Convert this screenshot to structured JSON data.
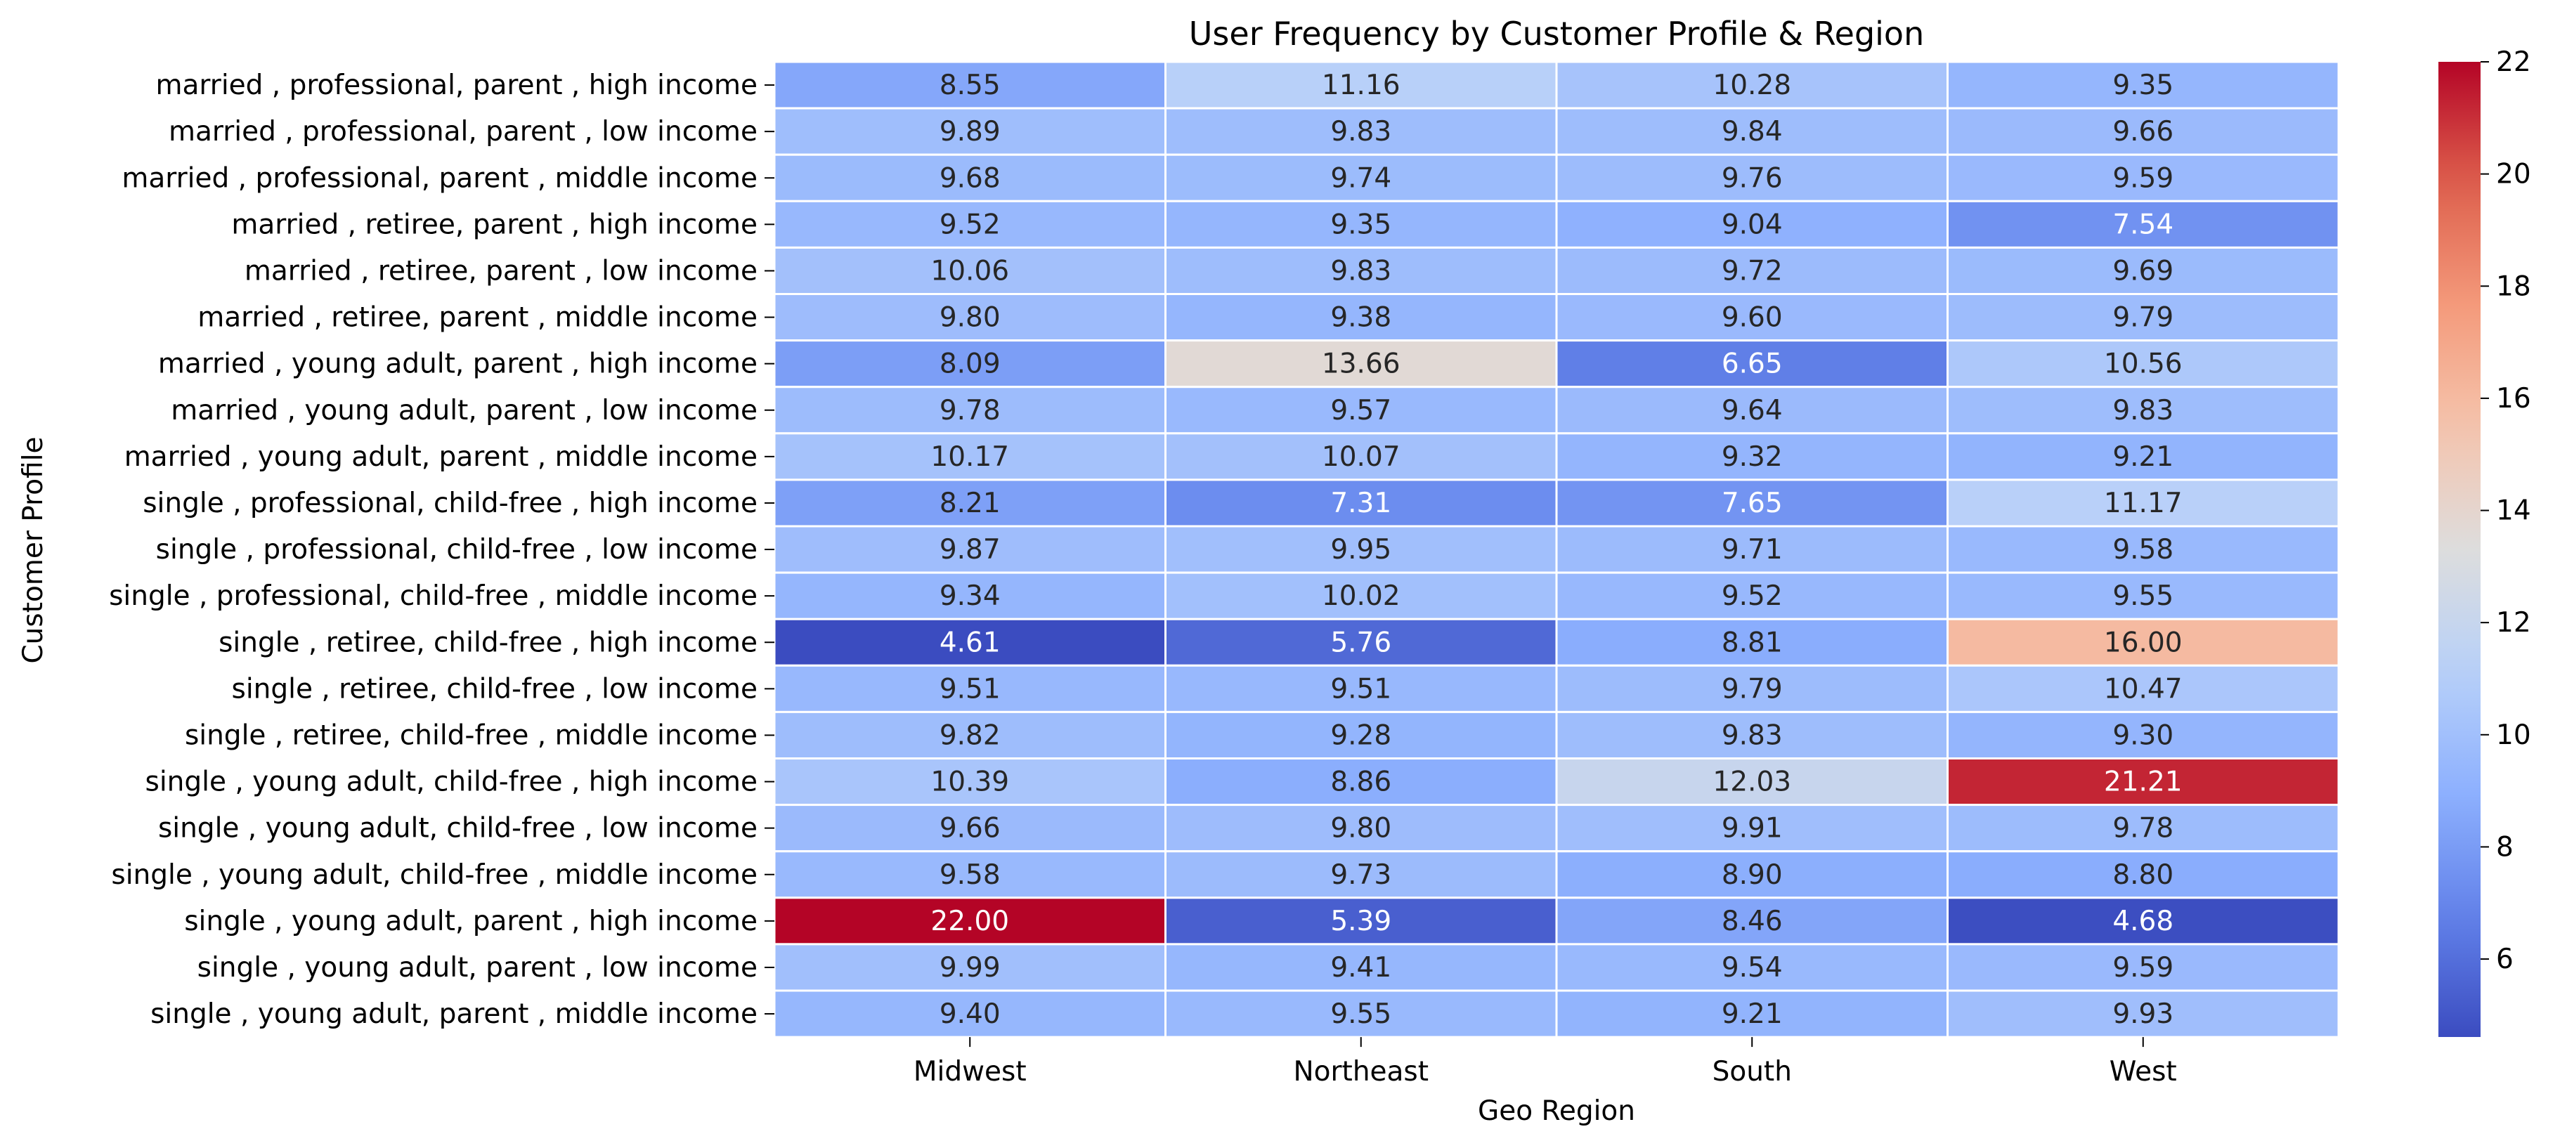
{
  "chart_data": {
    "type": "heatmap",
    "title": "User Frequency by Customer Profile & Region",
    "xlabel": "Geo Region",
    "ylabel": "Customer Profile",
    "colormap": "coolwarm",
    "colorbar": {
      "min": 4.61,
      "max": 22,
      "ticks": [
        6,
        8,
        10,
        12,
        14,
        16,
        18,
        20,
        22
      ]
    },
    "columns": [
      "Midwest",
      "Northeast",
      "South",
      "West"
    ],
    "rows": [
      "married , professional, parent , high income",
      "married , professional, parent , low income",
      "married , professional, parent , middle income",
      "married , retiree, parent , high income",
      "married , retiree, parent , low income",
      "married , retiree, parent , middle income",
      "married , young adult, parent , high income",
      "married , young adult, parent , low income",
      "married , young adult, parent , middle income",
      "single , professional, child-free , high income",
      "single , professional, child-free , low income",
      "single , professional, child-free , middle income",
      "single , retiree, child-free , high income",
      "single , retiree, child-free , low income",
      "single , retiree, child-free , middle income",
      "single , young adult, child-free , high income",
      "single , young adult, child-free , low income",
      "single , young adult, child-free , middle income",
      "single , young adult, parent , high income",
      "single , young adult, parent , low income",
      "single , young adult, parent , middle income"
    ],
    "values": [
      [
        8.55,
        11.16,
        10.28,
        9.35
      ],
      [
        9.89,
        9.83,
        9.84,
        9.66
      ],
      [
        9.68,
        9.74,
        9.76,
        9.59
      ],
      [
        9.52,
        9.35,
        9.04,
        7.54
      ],
      [
        10.06,
        9.83,
        9.72,
        9.69
      ],
      [
        9.8,
        9.38,
        9.6,
        9.79
      ],
      [
        8.09,
        13.66,
        6.65,
        10.56
      ],
      [
        9.78,
        9.57,
        9.64,
        9.83
      ],
      [
        10.17,
        10.07,
        9.32,
        9.21
      ],
      [
        8.21,
        7.31,
        7.65,
        11.17
      ],
      [
        9.87,
        9.95,
        9.71,
        9.58
      ],
      [
        9.34,
        10.02,
        9.52,
        9.55
      ],
      [
        4.61,
        5.76,
        8.81,
        16.0
      ],
      [
        9.51,
        9.51,
        9.79,
        10.47
      ],
      [
        9.82,
        9.28,
        9.83,
        9.3
      ],
      [
        10.39,
        8.86,
        12.03,
        21.21
      ],
      [
        9.66,
        9.8,
        9.91,
        9.78
      ],
      [
        9.58,
        9.73,
        8.9,
        8.8
      ],
      [
        22.0,
        5.39,
        8.46,
        4.68
      ],
      [
        9.99,
        9.41,
        9.54,
        9.59
      ],
      [
        9.4,
        9.55,
        9.21,
        9.93
      ]
    ],
    "value_format": "2 decimals",
    "grid": true,
    "legend": "colorbar-right"
  }
}
